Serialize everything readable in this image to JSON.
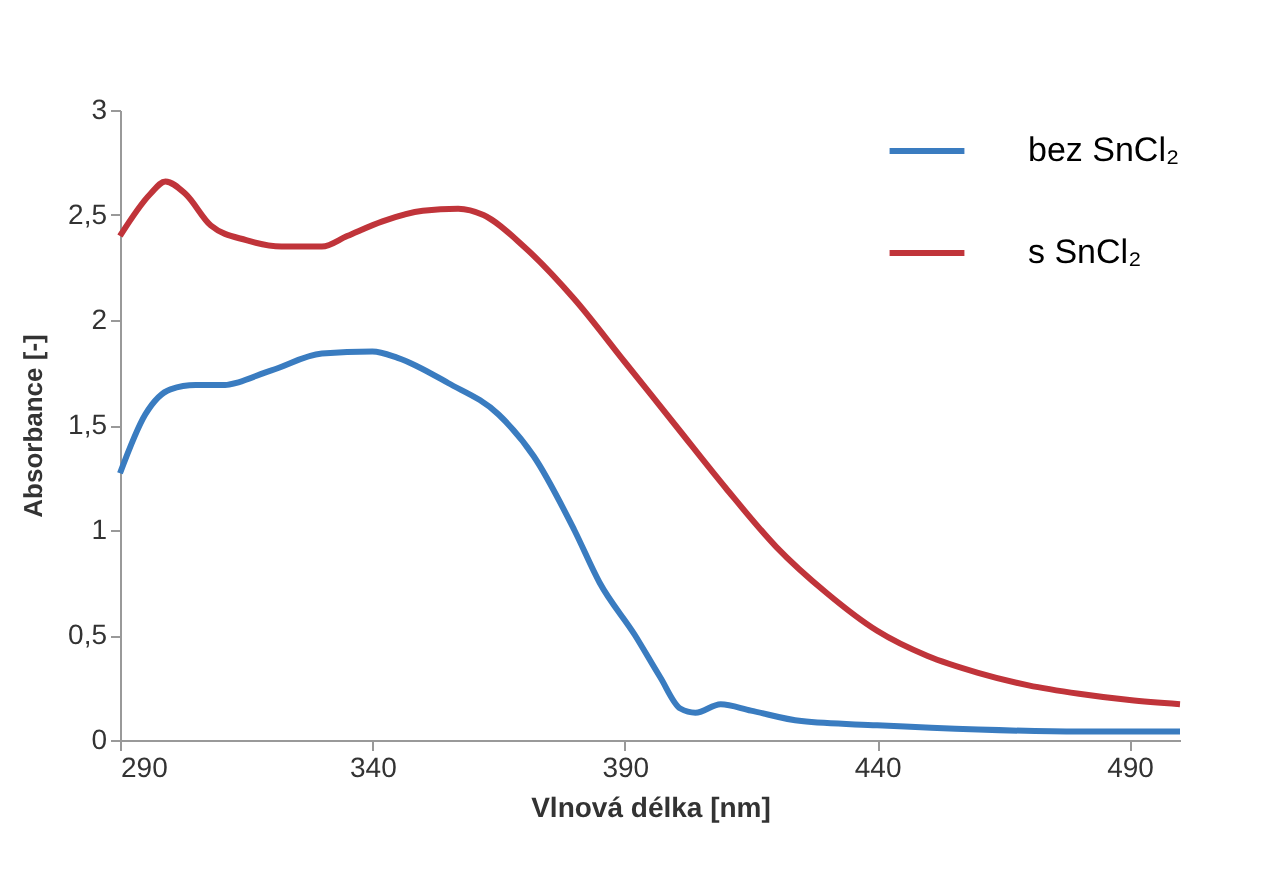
{
  "chart_data": {
    "type": "line",
    "xlabel": "Vlnová délka [nm]",
    "ylabel": "Absorbance [-]",
    "xlim": [
      290,
      500
    ],
    "xticks": [
      290,
      340,
      390,
      440,
      490
    ],
    "ylim": [
      0,
      3
    ],
    "yticks": [
      0,
      {
        "value": 0.5,
        "label": "0,5"
      },
      1,
      {
        "value": 1.5,
        "label": "1,5"
      },
      2,
      {
        "value": 2.5,
        "label": "2,5"
      },
      3
    ],
    "grid": false,
    "legend": "top right",
    "marker": "none",
    "line_style": "solid",
    "series": [
      {
        "name": "bez SnCl₂",
        "color": "#3a7cc0",
        "x": [
          290,
          295,
          300,
          305,
          310,
          320,
          330,
          340,
          345,
          355,
          365,
          372,
          380,
          385,
          392,
          397,
          401,
          404,
          409,
          415,
          425,
          440,
          460,
          480,
          500
        ],
        "values": [
          1.27,
          1.55,
          1.67,
          1.69,
          1.69,
          1.76,
          1.84,
          1.85,
          1.82,
          1.7,
          1.55,
          1.35,
          1.0,
          0.75,
          0.5,
          0.3,
          0.15,
          0.13,
          0.17,
          0.14,
          0.09,
          0.07,
          0.05,
          0.04,
          0.04
        ]
      },
      {
        "name": "s  SnCl₂",
        "color": "#c0343a",
        "x": [
          290,
          296,
          299,
          303,
          308,
          315,
          322,
          330,
          335,
          342,
          350,
          357,
          362,
          370,
          380,
          390,
          400,
          410,
          420,
          430,
          440,
          450,
          460,
          470,
          480,
          490,
          500
        ],
        "values": [
          2.4,
          2.6,
          2.66,
          2.6,
          2.45,
          2.38,
          2.35,
          2.35,
          2.4,
          2.47,
          2.52,
          2.53,
          2.5,
          2.35,
          2.1,
          1.8,
          1.5,
          1.2,
          0.92,
          0.7,
          0.52,
          0.4,
          0.32,
          0.26,
          0.22,
          0.19,
          0.17
        ]
      }
    ]
  }
}
